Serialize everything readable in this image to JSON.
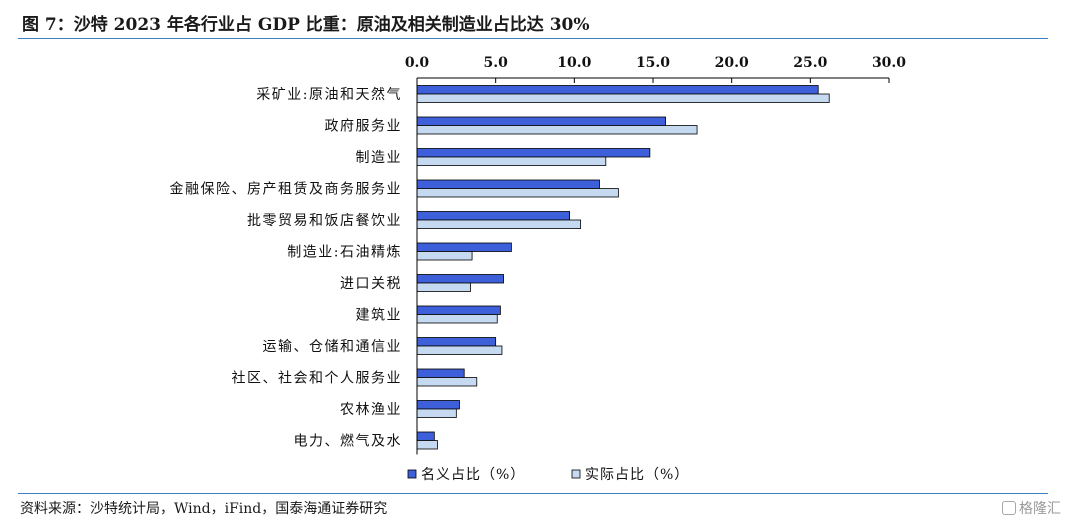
{
  "figure": {
    "title": "图 7：沙特 2023 年各行业占 GDP 比重：原油及相关制造业占比达 30%",
    "source": "资料来源：沙特统计局，Wind，iFind，国泰海通证券研究",
    "watermark": "格隆汇"
  },
  "chart_data": {
    "type": "bar",
    "orientation": "horizontal",
    "categories": [
      "采矿业:原油和天然气",
      "政府服务业",
      "制造业",
      "金融保险、房产租赁及商务服务业",
      "批零贸易和饭店餐饮业",
      "制造业:石油精炼",
      "进口关税",
      "建筑业",
      "运输、仓储和通信业",
      "社区、社会和个人服务业",
      "农林渔业",
      "电力、燃气及水"
    ],
    "series": [
      {
        "name": "名义占比（%）",
        "color": "#3d5fd9",
        "values": [
          25.5,
          15.8,
          14.8,
          11.6,
          9.7,
          6.0,
          5.5,
          5.3,
          5.0,
          3.0,
          2.7,
          1.1
        ]
      },
      {
        "name": "实际占比（%）",
        "color": "#c5d9f1",
        "values": [
          26.2,
          17.8,
          12.0,
          12.8,
          10.4,
          3.5,
          3.4,
          5.1,
          5.4,
          3.8,
          2.5,
          1.3
        ]
      }
    ],
    "x_ticks": [
      "0.0",
      "5.0",
      "10.0",
      "15.0",
      "20.0",
      "25.0",
      "30.0"
    ],
    "xlim": [
      0,
      30
    ],
    "axis_position": "top",
    "grid": false,
    "legend_position": "bottom-center"
  }
}
